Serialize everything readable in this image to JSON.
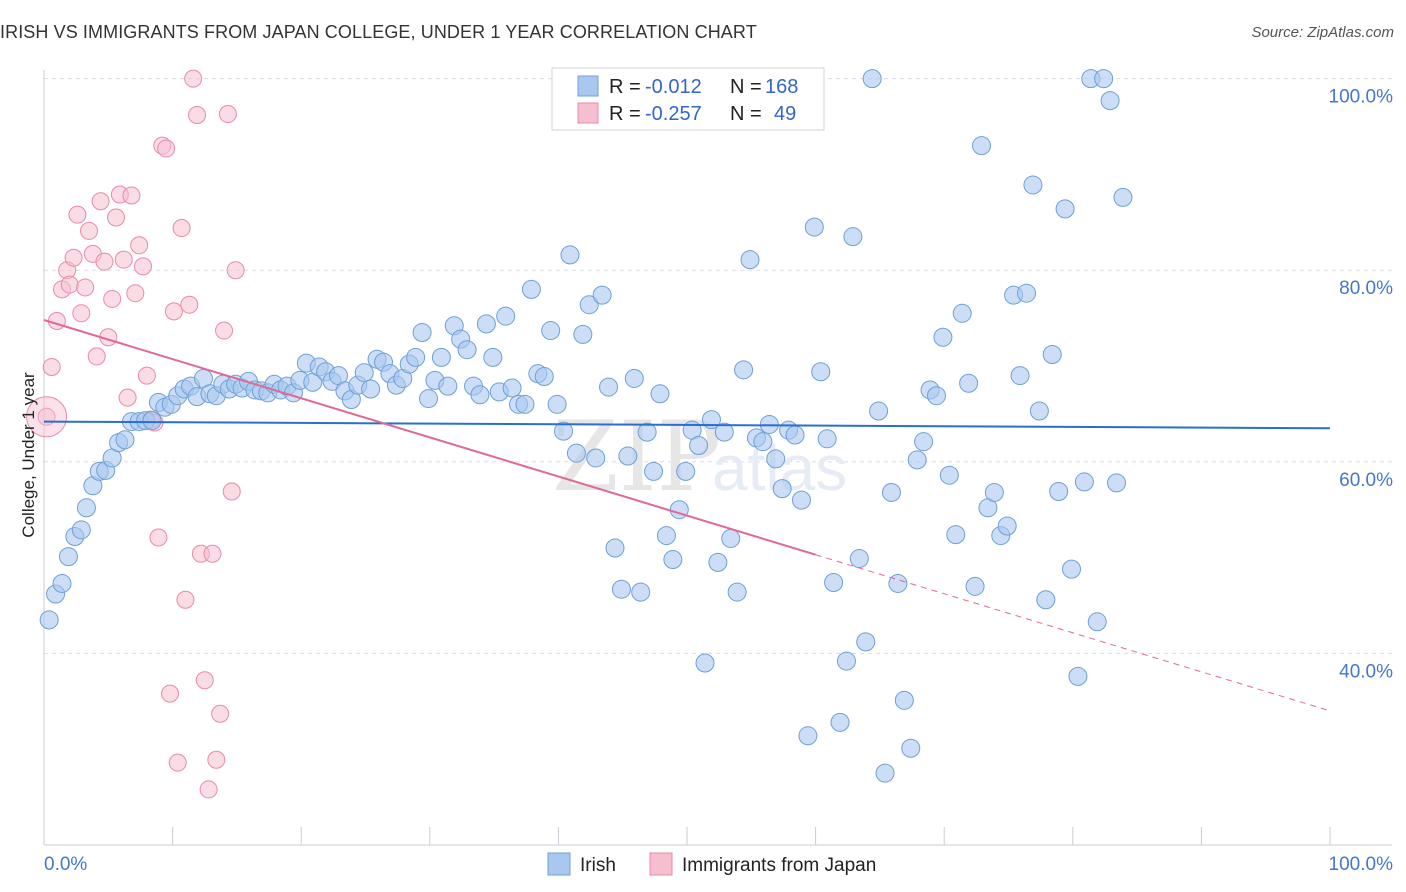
{
  "title": "IRISH VS IMMIGRANTS FROM JAPAN COLLEGE, UNDER 1 YEAR CORRELATION CHART",
  "source": "Source: ZipAtlas.com",
  "watermark": {
    "zip": "ZIP",
    "atlas": "atlas"
  },
  "colors": {
    "irish_fill": "#a9c8ef",
    "irish_stroke": "#6f9fd8",
    "irish_line": "#2a6fcf",
    "japan_fill": "#f6bfd0",
    "japan_stroke": "#e88aaa",
    "japan_line": "#de6a95",
    "grid": "#d8dde6",
    "tick_text": "#4477cc"
  },
  "legend": {
    "r_label": "R =",
    "n_label": "N =",
    "rows": [
      {
        "r": "-0.012",
        "n": "168"
      },
      {
        "r": "-0.257",
        "n": "49"
      }
    ]
  },
  "bottom_legend": [
    {
      "label": "Irish"
    },
    {
      "label": "Immigrants from Japan"
    }
  ],
  "chart_data": {
    "type": "scatter",
    "title": "IRISH VS IMMIGRANTS FROM JAPAN COLLEGE, UNDER 1 YEAR CORRELATION CHART",
    "xlabel": "",
    "ylabel": "College, Under 1 year",
    "xlim": [
      0,
      100
    ],
    "ylim": [
      20,
      102
    ],
    "x_tick_labels": [
      "0.0%",
      "100.0%"
    ],
    "y_ticks": [
      40,
      60,
      80,
      100
    ],
    "y_tick_labels": [
      "40.0%",
      "60.0%",
      "80.0%",
      "100.0%"
    ],
    "grid": true,
    "legend_position": "top-center",
    "series": [
      {
        "name": "Irish",
        "r": -0.012,
        "n": 168,
        "trend": {
          "x": [
            0,
            100
          ],
          "y": [
            64.2,
            63.5
          ]
        },
        "points": [
          [
            0.4,
            43.5
          ],
          [
            0.9,
            46.2
          ],
          [
            1.4,
            47.3
          ],
          [
            1.9,
            50.1
          ],
          [
            2.4,
            52.2
          ],
          [
            2.9,
            52.9
          ],
          [
            3.3,
            55.2
          ],
          [
            3.8,
            57.5
          ],
          [
            4.3,
            59.0
          ],
          [
            4.8,
            59.1
          ],
          [
            5.3,
            60.4
          ],
          [
            5.8,
            62.0
          ],
          [
            6.3,
            62.3
          ],
          [
            6.8,
            64.2
          ],
          [
            7.4,
            64.2
          ],
          [
            7.9,
            64.3
          ],
          [
            8.4,
            64.3
          ],
          [
            8.9,
            66.2
          ],
          [
            9.4,
            65.7
          ],
          [
            9.9,
            66.0
          ],
          [
            10.4,
            66.9
          ],
          [
            10.9,
            67.6
          ],
          [
            11.4,
            67.9
          ],
          [
            11.9,
            66.8
          ],
          [
            12.4,
            68.7
          ],
          [
            12.9,
            67.1
          ],
          [
            13.4,
            66.9
          ],
          [
            13.9,
            68.1
          ],
          [
            14.4,
            67.6
          ],
          [
            14.9,
            68.1
          ],
          [
            15.4,
            67.7
          ],
          [
            15.9,
            68.4
          ],
          [
            16.4,
            67.5
          ],
          [
            16.9,
            67.4
          ],
          [
            17.4,
            67.2
          ],
          [
            17.9,
            68.1
          ],
          [
            18.4,
            67.5
          ],
          [
            18.9,
            67.9
          ],
          [
            19.4,
            67.2
          ],
          [
            19.9,
            68.5
          ],
          [
            20.4,
            70.3
          ],
          [
            20.9,
            68.3
          ],
          [
            21.4,
            69.9
          ],
          [
            21.9,
            69.4
          ],
          [
            22.4,
            68.4
          ],
          [
            22.9,
            69.0
          ],
          [
            23.4,
            67.4
          ],
          [
            23.9,
            66.5
          ],
          [
            24.4,
            68.0
          ],
          [
            24.9,
            69.3
          ],
          [
            25.4,
            67.6
          ],
          [
            25.9,
            70.7
          ],
          [
            26.4,
            70.4
          ],
          [
            26.9,
            69.2
          ],
          [
            27.4,
            68.0
          ],
          [
            27.9,
            68.7
          ],
          [
            28.4,
            70.2
          ],
          [
            28.9,
            70.9
          ],
          [
            29.4,
            73.5
          ],
          [
            29.9,
            66.6
          ],
          [
            30.4,
            68.5
          ],
          [
            30.9,
            70.9
          ],
          [
            31.4,
            67.9
          ],
          [
            31.9,
            74.2
          ],
          [
            32.4,
            72.8
          ],
          [
            32.9,
            71.7
          ],
          [
            33.4,
            67.9
          ],
          [
            33.9,
            67.0
          ],
          [
            34.4,
            74.4
          ],
          [
            34.9,
            70.9
          ],
          [
            35.4,
            67.3
          ],
          [
            35.9,
            75.2
          ],
          [
            36.4,
            67.7
          ],
          [
            36.9,
            66.0
          ],
          [
            37.4,
            66.0
          ],
          [
            37.9,
            78.0
          ],
          [
            38.4,
            69.2
          ],
          [
            38.9,
            68.9
          ],
          [
            39.4,
            73.7
          ],
          [
            39.9,
            66.0
          ],
          [
            40.4,
            63.2
          ],
          [
            40.9,
            81.6
          ],
          [
            41.4,
            60.9
          ],
          [
            41.9,
            73.3
          ],
          [
            42.4,
            76.4
          ],
          [
            42.9,
            60.4
          ],
          [
            43.4,
            77.4
          ],
          [
            43.9,
            67.8
          ],
          [
            44.4,
            51.0
          ],
          [
            44.9,
            46.7
          ],
          [
            45.4,
            60.6
          ],
          [
            45.9,
            68.7
          ],
          [
            46.4,
            46.4
          ],
          [
            46.9,
            63.1
          ],
          [
            47.4,
            59.0
          ],
          [
            47.9,
            67.1
          ],
          [
            48.4,
            52.3
          ],
          [
            48.9,
            49.8
          ],
          [
            49.4,
            55.0
          ],
          [
            49.9,
            59.0
          ],
          [
            50.4,
            63.3
          ],
          [
            50.9,
            61.7
          ],
          [
            51.4,
            39.0
          ],
          [
            51.9,
            64.4
          ],
          [
            52.4,
            49.5
          ],
          [
            52.9,
            63.1
          ],
          [
            53.4,
            52.0
          ],
          [
            53.9,
            46.4
          ],
          [
            54.4,
            69.6
          ],
          [
            54.9,
            81.1
          ],
          [
            55.4,
            62.5
          ],
          [
            55.9,
            62.1
          ],
          [
            56.4,
            63.9
          ],
          [
            56.9,
            60.3
          ],
          [
            57.4,
            57.2
          ],
          [
            57.9,
            63.3
          ],
          [
            58.4,
            62.8
          ],
          [
            58.9,
            56.0
          ],
          [
            59.4,
            31.4
          ],
          [
            59.9,
            84.5
          ],
          [
            60.4,
            69.4
          ],
          [
            60.9,
            62.4
          ],
          [
            61.4,
            47.4
          ],
          [
            61.9,
            32.8
          ],
          [
            62.4,
            39.2
          ],
          [
            62.9,
            83.5
          ],
          [
            63.4,
            49.9
          ],
          [
            63.9,
            41.2
          ],
          [
            64.4,
            100.0
          ],
          [
            64.9,
            65.3
          ],
          [
            65.4,
            27.5
          ],
          [
            65.9,
            56.8
          ],
          [
            66.4,
            47.3
          ],
          [
            66.9,
            35.1
          ],
          [
            67.4,
            30.1
          ],
          [
            67.9,
            60.2
          ],
          [
            68.4,
            62.1
          ],
          [
            68.9,
            67.5
          ],
          [
            69.4,
            66.9
          ],
          [
            69.9,
            73.0
          ],
          [
            70.4,
            58.6
          ],
          [
            70.9,
            52.4
          ],
          [
            71.4,
            75.5
          ],
          [
            71.9,
            68.2
          ],
          [
            72.4,
            47.0
          ],
          [
            72.9,
            93.0
          ],
          [
            73.4,
            55.2
          ],
          [
            73.9,
            56.8
          ],
          [
            74.4,
            52.3
          ],
          [
            74.9,
            53.3
          ],
          [
            75.4,
            77.4
          ],
          [
            75.9,
            69.0
          ],
          [
            76.4,
            77.6
          ],
          [
            76.9,
            88.9
          ],
          [
            77.4,
            65.3
          ],
          [
            77.9,
            45.6
          ],
          [
            78.4,
            71.2
          ],
          [
            78.9,
            56.9
          ],
          [
            79.4,
            86.4
          ],
          [
            79.9,
            48.8
          ],
          [
            80.4,
            37.6
          ],
          [
            80.9,
            57.9
          ],
          [
            81.4,
            100.0
          ],
          [
            81.9,
            43.3
          ],
          [
            82.4,
            100.0
          ],
          [
            82.9,
            97.7
          ],
          [
            83.4,
            57.8
          ],
          [
            83.9,
            87.6
          ]
        ]
      },
      {
        "name": "Immigrants from Japan",
        "r": -0.257,
        "n": 49,
        "trend": {
          "x": [
            0,
            60
          ],
          "y": [
            74.8,
            50.3
          ]
        },
        "trend_dashed": {
          "x": [
            60,
            100
          ],
          "y": [
            50.3,
            34.0
          ]
        },
        "points": [
          [
            0.2,
            64.7
          ],
          [
            0.6,
            69.9
          ],
          [
            1.0,
            74.7
          ],
          [
            1.4,
            78.0
          ],
          [
            1.8,
            80.0
          ],
          [
            2.0,
            78.5
          ],
          [
            2.3,
            81.3
          ],
          [
            2.6,
            85.8
          ],
          [
            2.9,
            75.5
          ],
          [
            3.2,
            78.2
          ],
          [
            3.5,
            84.1
          ],
          [
            3.8,
            81.7
          ],
          [
            4.1,
            71.0
          ],
          [
            4.4,
            87.2
          ],
          [
            4.7,
            80.9
          ],
          [
            5.0,
            73.0
          ],
          [
            5.3,
            77.0
          ],
          [
            5.6,
            85.5
          ],
          [
            5.9,
            87.9
          ],
          [
            6.2,
            81.1
          ],
          [
            6.5,
            66.7
          ],
          [
            6.8,
            87.8
          ],
          [
            7.1,
            77.6
          ],
          [
            7.4,
            82.6
          ],
          [
            7.7,
            80.4
          ],
          [
            8.0,
            69.0
          ],
          [
            8.3,
            64.4
          ],
          [
            8.6,
            64.1
          ],
          [
            8.9,
            52.1
          ],
          [
            9.2,
            93.0
          ],
          [
            9.5,
            92.7
          ],
          [
            9.8,
            35.8
          ],
          [
            10.1,
            75.7
          ],
          [
            10.4,
            28.6
          ],
          [
            10.7,
            84.4
          ],
          [
            11.0,
            45.6
          ],
          [
            11.3,
            76.4
          ],
          [
            11.6,
            100.0
          ],
          [
            11.9,
            96.2
          ],
          [
            12.2,
            50.4
          ],
          [
            12.5,
            37.2
          ],
          [
            12.8,
            25.8
          ],
          [
            13.1,
            50.4
          ],
          [
            13.4,
            28.9
          ],
          [
            13.7,
            33.7
          ],
          [
            14.0,
            73.7
          ],
          [
            14.3,
            96.3
          ],
          [
            14.6,
            56.9
          ],
          [
            14.9,
            80.0
          ]
        ]
      }
    ]
  }
}
